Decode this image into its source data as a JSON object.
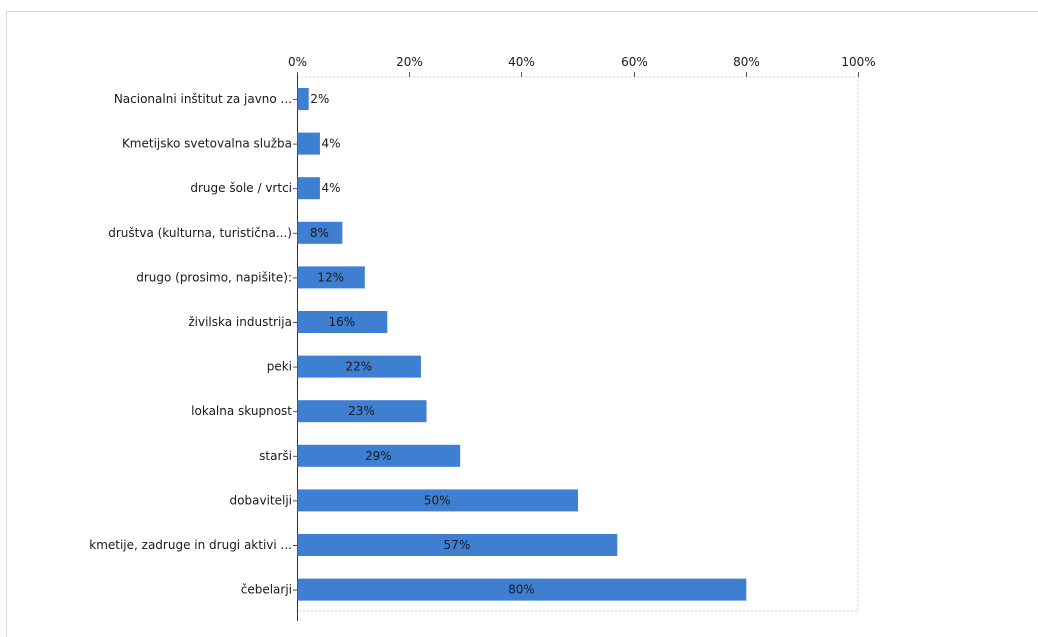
{
  "chart_data": {
    "type": "bar",
    "orientation": "horizontal",
    "title": "",
    "xlabel": "",
    "ylabel": "",
    "xlim": [
      0,
      100
    ],
    "x_ticks": [
      "0%",
      "20%",
      "40%",
      "60%",
      "80%",
      "100%"
    ],
    "x_axis_position": "top",
    "grid": false,
    "bar_color": "#3f7fd1",
    "categories": [
      "Nacionalni inštitut za javno ...",
      "Kmetijsko svetovalna služba",
      "druge šole / vrtci",
      "društva (kulturna, turistična...)",
      "drugo (prosimo, napišite):",
      "živilska industrija",
      "peki",
      "lokalna skupnost",
      "starši",
      "dobavitelji",
      "kmetije, zadruge in drugi aktivi ...",
      "čebelarji"
    ],
    "values": [
      2,
      4,
      4,
      8,
      12,
      16,
      22,
      23,
      29,
      50,
      57,
      80
    ],
    "data_labels": [
      "2%",
      "4%",
      "4%",
      "8%",
      "12%",
      "16%",
      "22%",
      "23%",
      "29%",
      "50%",
      "57%",
      "80%"
    ]
  }
}
